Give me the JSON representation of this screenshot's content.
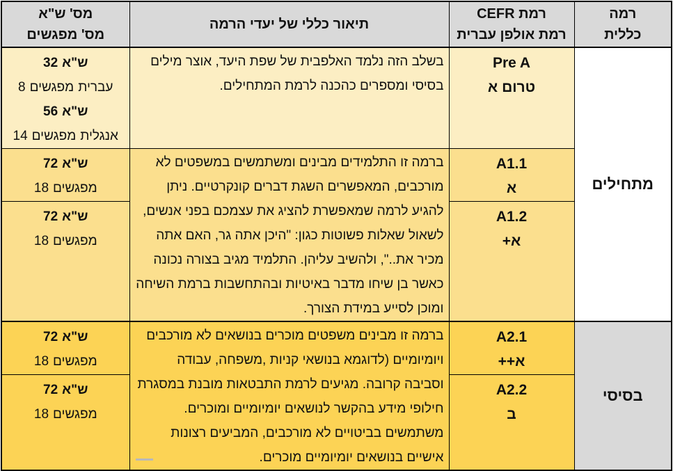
{
  "colors": {
    "border": "#000000",
    "header_bg": "#D9D9D9",
    "pre_a_row_bg": "#FCEEC3",
    "a1_rows_bg": "#FBDF8E",
    "a2_rows_bg": "#FCD355",
    "beginners_cell_bg": "#FFFFFF",
    "basic_cell_bg": "#D9D9D9"
  },
  "header": {
    "general_level_line1": "רמה",
    "general_level_line2": "כללית",
    "cefr_line1": "רמת CEFR",
    "cefr_line2": "רמת אולפן עברית",
    "description": "תיאור כללי של יעדי הרמה",
    "hours_line1": "מס' ש\"א",
    "hours_line2": "מס' מפגשים"
  },
  "levels": {
    "beginners_label": "מתחילים",
    "basic_label": "בסיסי"
  },
  "rows": {
    "pre_a": {
      "cefr": "Pre A",
      "ulpan": "טרום א",
      "description": "בשלב הזה נלמד האלפבית של שפת היעד, אוצר מילים בסיסי ומספרים כהכנה לרמת המתחילים.",
      "hours": [
        {
          "bold": true,
          "tokens": [
            "32",
            "ש\"א"
          ]
        },
        {
          "bold": false,
          "tokens": [
            "8",
            "מפגשים",
            "עברית"
          ]
        },
        {
          "bold": true,
          "tokens": [
            "56",
            "ש\"א"
          ]
        },
        {
          "bold": false,
          "tokens": [
            "14",
            "מפגשים",
            "אנגלית"
          ]
        }
      ]
    },
    "a1_description": "ברמה זו התלמידים מבינים ומשתמשים במשפטים לא מורכבים, המאפשרים השגת דברים קונקרטיים. ניתן להגיע לרמה שמאפשרת להציג את עצמכם בפני אנשים, לשאול שאלות פשוטות כגון: \"היכן אתה גר, האם אתה מכיר את..\", ולהשיב עליהן. התלמיד מגיב בצורה נכונה כאשר בן שיחו מדבר באיטיות ובהתחשבות ברמת השיחה ומוכן לסייע במידת הצורך.",
    "a1_1": {
      "cefr": "A1.1",
      "ulpan": "א",
      "hours": [
        {
          "bold": true,
          "tokens": [
            "72",
            "ש\"א"
          ]
        },
        {
          "bold": false,
          "tokens": [
            "18",
            "מפגשים"
          ]
        }
      ]
    },
    "a1_2": {
      "cefr": "A1.2",
      "ulpan": "א+",
      "hours": [
        {
          "bold": true,
          "tokens": [
            "72",
            "ש\"א"
          ]
        },
        {
          "bold": false,
          "tokens": [
            "18",
            "מפגשים"
          ]
        }
      ]
    },
    "a2_description": "ברמה זו מבינים משפטים מוכרים בנושאים לא מורכבים ויומיומיים (לדוגמא בנושאי קניות ,משפחה, עבודה וסביבה קרובה. מגיעים לרמת התבטאות מובנת במסגרת חילופי מידע בהקשר לנושאים יומיומיים ומוכרים. משתמשים בביטויים לא מורכבים, המביעים רצונות אישיים בנושאים יומיומיים מוכרים.",
    "a2_1": {
      "cefr": "A2.1",
      "ulpan": "א++",
      "hours": [
        {
          "bold": true,
          "tokens": [
            "72",
            "ש\"א"
          ]
        },
        {
          "bold": false,
          "tokens": [
            "18",
            "מפגשים"
          ]
        }
      ]
    },
    "a2_2": {
      "cefr": "A2.2",
      "ulpan": "ב",
      "hours": [
        {
          "bold": true,
          "tokens": [
            "72",
            "ש\"א"
          ]
        },
        {
          "bold": false,
          "tokens": [
            "18",
            "מפגשים"
          ]
        }
      ]
    }
  }
}
